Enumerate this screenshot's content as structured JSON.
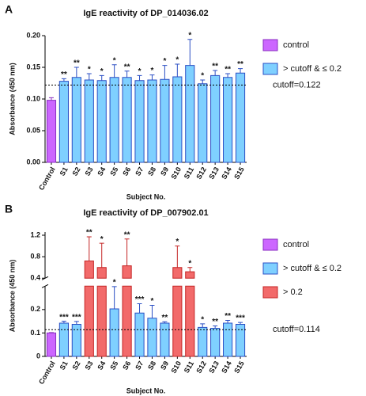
{
  "chart_data": [
    {
      "type": "bar",
      "panel_label": "A",
      "title": "IgE reactivity of DP_014036.02",
      "xlabel": "Subject No.",
      "ylabel": "Absorbance (450 nm)",
      "categories": [
        "Control",
        "S1",
        "S2",
        "S3",
        "S4",
        "S5",
        "S6",
        "S7",
        "S8",
        "S9",
        "S10",
        "S11",
        "S12",
        "S13",
        "S14",
        "S15"
      ],
      "series": [
        {
          "name": "control",
          "color": "#cc66ff",
          "edge": "#8a2fc0",
          "values": [
            0.098,
            null,
            null,
            null,
            null,
            null,
            null,
            null,
            null,
            null,
            null,
            null,
            null,
            null,
            null,
            null
          ],
          "errors": [
            0.004,
            null,
            null,
            null,
            null,
            null,
            null,
            null,
            null,
            null,
            null,
            null,
            null,
            null,
            null,
            null
          ]
        },
        {
          "name": "> cutoff  & ≤ 0.2",
          "color": "#7fd0ff",
          "edge": "#2b4fc4",
          "values": [
            null,
            0.128,
            0.134,
            0.13,
            0.129,
            0.134,
            0.134,
            0.129,
            0.13,
            0.131,
            0.135,
            0.153,
            0.124,
            0.137,
            0.134,
            0.141
          ],
          "errors": [
            null,
            0.004,
            0.016,
            0.01,
            0.008,
            0.02,
            0.01,
            0.008,
            0.008,
            0.022,
            0.02,
            0.041,
            0.006,
            0.008,
            0.006,
            0.007
          ]
        }
      ],
      "significance": [
        null,
        "**",
        "**",
        "*",
        "*",
        "*",
        "**",
        "*",
        "*",
        "*",
        "*",
        "*",
        "*",
        "**",
        "**",
        "**"
      ],
      "ylim": [
        0,
        0.2
      ],
      "yticks": [
        {
          "value": 0,
          "label": "0.00"
        },
        {
          "value": 0.05,
          "label": "0.05"
        },
        {
          "value": 0.1,
          "label": "0.10"
        },
        {
          "value": 0.15,
          "label": "0.15"
        },
        {
          "value": 0.2,
          "label": "0.20"
        }
      ],
      "cutoff": {
        "value": 0.122,
        "label": "cutoff=0.122"
      },
      "legend": "right"
    },
    {
      "type": "bar",
      "panel_label": "B",
      "title": "IgE reactivity of DP_007902.01",
      "xlabel": "Subject No.",
      "ylabel": "Absorbance (450 nm)",
      "categories": [
        "Control",
        "S1",
        "S2",
        "S3",
        "S4",
        "S5",
        "S6",
        "S7",
        "S8",
        "S9",
        "S10",
        "S11",
        "S12",
        "S13",
        "S14",
        "S15"
      ],
      "series": [
        {
          "name": "control",
          "color": "#cc66ff",
          "edge": "#8a2fc0",
          "values": [
            0.1,
            null,
            null,
            null,
            null,
            null,
            null,
            null,
            null,
            null,
            null,
            null,
            null,
            null,
            null,
            null
          ],
          "errors": [
            0.002,
            null,
            null,
            null,
            null,
            null,
            null,
            null,
            null,
            null,
            null,
            null,
            null,
            null,
            null,
            null
          ]
        },
        {
          "name": "> cutoff  & ≤ 0.2",
          "color": "#7fd0ff",
          "edge": "#2b4fc4",
          "values": [
            null,
            0.142,
            0.137,
            null,
            null,
            0.203,
            null,
            0.185,
            0.163,
            0.142,
            null,
            null,
            0.124,
            0.12,
            0.142,
            0.137
          ],
          "errors": [
            null,
            0.008,
            0.012,
            null,
            null,
            0.095,
            null,
            0.04,
            0.055,
            0.006,
            null,
            null,
            0.015,
            0.01,
            0.012,
            0.008
          ]
        },
        {
          "name": "> 0.2",
          "color": "#f26a6a",
          "edge": "#c42525",
          "values": [
            null,
            null,
            null,
            0.72,
            0.6,
            null,
            0.63,
            null,
            null,
            null,
            0.6,
            0.52,
            null,
            null,
            null,
            null
          ],
          "errors": [
            null,
            null,
            null,
            0.45,
            0.45,
            null,
            0.5,
            null,
            null,
            null,
            0.4,
            0.08,
            null,
            null,
            null,
            null
          ]
        }
      ],
      "significance": [
        null,
        "***",
        "***",
        "**",
        "*",
        "*",
        "**",
        "***",
        "*",
        "**",
        "*",
        "*",
        "*",
        "**",
        "**",
        "***"
      ],
      "ylim": [
        0,
        1.2
      ],
      "ybreak": [
        0.3,
        0.4
      ],
      "yticks": [
        0,
        0.1,
        0.2,
        0.4,
        0.8,
        1.2
      ],
      "cutoff": {
        "value": 0.114,
        "label": "cutoff=0.114"
      },
      "legend": "right"
    }
  ]
}
